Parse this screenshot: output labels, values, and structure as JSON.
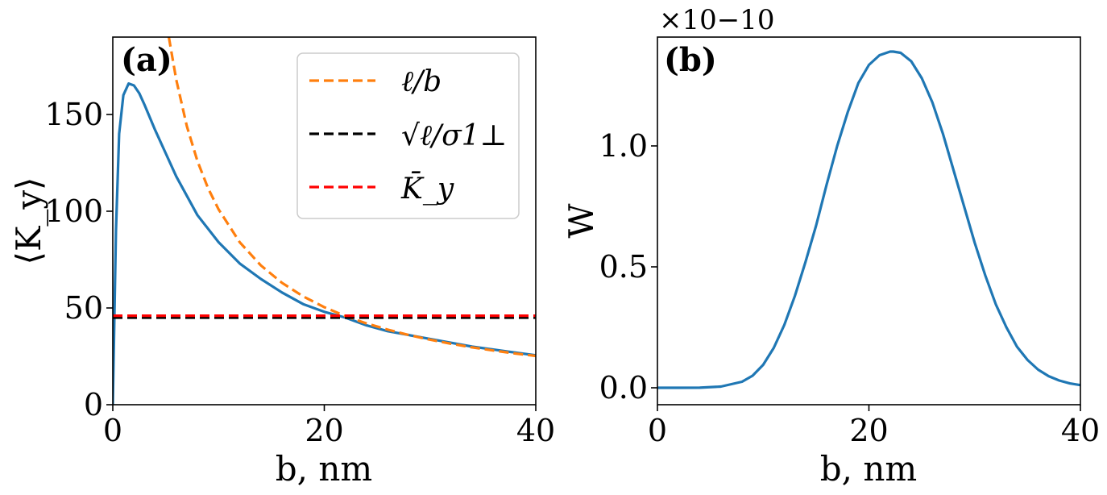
{
  "chart_data": [
    {
      "type": "line",
      "panel_label": "(a)",
      "xlabel": "b, nm",
      "ylabel": "⟨K_y⟩",
      "xlim": [
        0,
        40
      ],
      "ylim": [
        0,
        190
      ],
      "xticks": [
        0,
        20,
        40
      ],
      "yticks": [
        0,
        50,
        100,
        150
      ],
      "xtick_labels": [
        "0",
        "20",
        "40"
      ],
      "ytick_labels": [
        "0",
        "50",
        "100",
        "150"
      ],
      "legend_position": "top-right",
      "series": [
        {
          "name": "⟨K_y⟩",
          "color": "#1f77b4",
          "style": "solid",
          "in_legend": false,
          "x": [
            0,
            0.3,
            0.6,
            1.0,
            1.5,
            2.0,
            2.5,
            3,
            4,
            5,
            6,
            8,
            10,
            12,
            14,
            16,
            18,
            20,
            22,
            24,
            26,
            28,
            30,
            32,
            34,
            36,
            38,
            40
          ],
          "y": [
            0,
            90,
            140,
            160,
            166,
            165,
            161,
            155,
            142,
            130,
            118,
            98,
            84,
            73,
            65,
            58,
            52,
            48,
            45,
            41,
            38,
            36,
            34,
            32,
            30,
            28.5,
            27,
            25.5
          ]
        },
        {
          "name": "ℓ/b",
          "color": "#ff7f0e",
          "style": "dashed",
          "in_legend": true,
          "x": [
            5.3,
            6,
            7,
            8,
            9,
            10,
            12,
            14,
            16,
            18,
            20,
            22,
            24,
            26,
            28,
            30,
            32,
            34,
            36,
            38,
            40
          ],
          "y": [
            190,
            168,
            144,
            126,
            112,
            101,
            84,
            72,
            63,
            56,
            50.4,
            45.8,
            42,
            38.8,
            36,
            33.6,
            31.5,
            29.6,
            28,
            26.5,
            25.2
          ]
        },
        {
          "name": "√ℓ/σ1⊥",
          "color": "#000000",
          "style": "dashed",
          "in_legend": true,
          "x": [
            0,
            40
          ],
          "y": [
            45,
            45
          ]
        },
        {
          "name": "K̄_y",
          "color": "#ff0000",
          "style": "dashed",
          "in_legend": true,
          "x": [
            0,
            40
          ],
          "y": [
            46,
            46
          ]
        }
      ]
    },
    {
      "type": "line",
      "panel_label": "(b)",
      "xlabel": "b, nm",
      "ylabel": "W",
      "y_scale_factor": "×10−10",
      "xlim": [
        0,
        40
      ],
      "ylim": [
        -0.07,
        1.45
      ],
      "xticks": [
        0,
        20,
        40
      ],
      "yticks": [
        0.0,
        0.5,
        1.0
      ],
      "xtick_labels": [
        "0",
        "20",
        "40"
      ],
      "ytick_labels": [
        "0.0",
        "0.5",
        "1.0"
      ],
      "series": [
        {
          "name": "W",
          "color": "#1f77b4",
          "style": "solid",
          "x": [
            0,
            2,
            4,
            6,
            8,
            9,
            10,
            11,
            12,
            13,
            14,
            15,
            16,
            17,
            18,
            19,
            20,
            21,
            22,
            22.3,
            23,
            24,
            25,
            26,
            27,
            28,
            29,
            30,
            31,
            32,
            33,
            34,
            35,
            36,
            37,
            38,
            39,
            40
          ],
          "y": [
            0,
            0,
            0.0004,
            0.005,
            0.025,
            0.05,
            0.095,
            0.165,
            0.26,
            0.38,
            0.52,
            0.67,
            0.84,
            1.0,
            1.14,
            1.26,
            1.335,
            1.375,
            1.39,
            1.39,
            1.385,
            1.35,
            1.28,
            1.18,
            1.05,
            0.9,
            0.75,
            0.6,
            0.465,
            0.345,
            0.25,
            0.17,
            0.115,
            0.075,
            0.048,
            0.03,
            0.018,
            0.011
          ]
        }
      ]
    }
  ]
}
